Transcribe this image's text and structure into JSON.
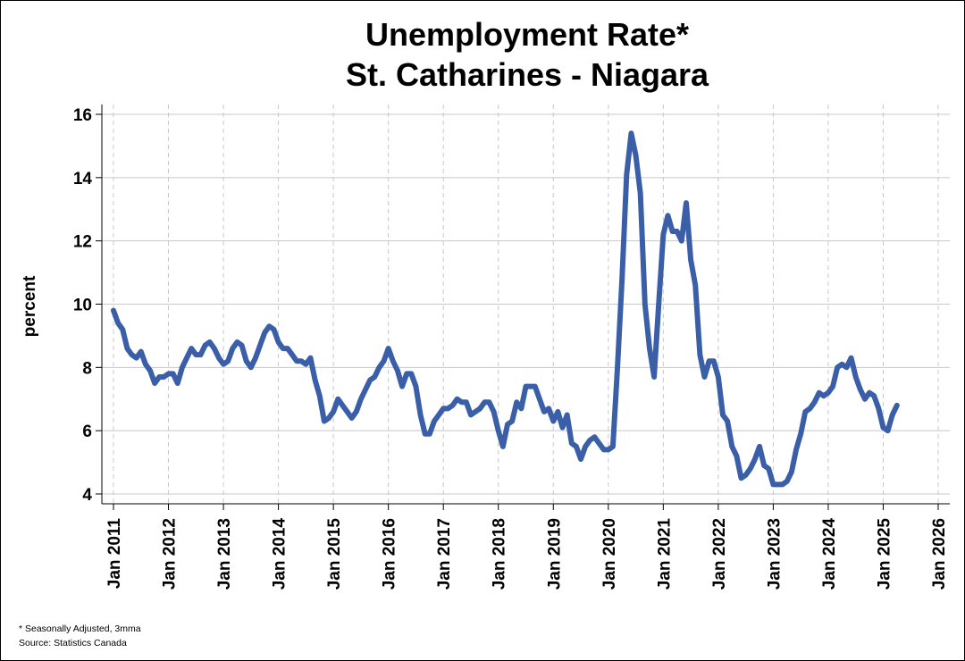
{
  "chart_data": {
    "type": "line",
    "title": "Unemployment Rate*",
    "subtitle": "St. Catharines - Niagara",
    "xlabel": "",
    "ylabel": "percent",
    "ylim": [
      4,
      16.3
    ],
    "yticks": [
      4,
      6,
      8,
      10,
      12,
      14,
      16
    ],
    "xlim": [
      "2011-01",
      "2026-01"
    ],
    "xticks": [
      "Jan 2011",
      "Jan 2012",
      "Jan 2013",
      "Jan 2014",
      "Jan 2015",
      "Jan 2016",
      "Jan 2017",
      "Jan 2018",
      "Jan 2019",
      "Jan 2020",
      "Jan 2021",
      "Jan 2022",
      "Jan 2023",
      "Jan 2024",
      "Jan 2025",
      "Jan 2026"
    ],
    "grid": {
      "x": "dashed",
      "y": "solid"
    },
    "legend": "none",
    "footnote": "* Seasonally Adjusted, 3mma",
    "source": "Source: Statistics Canada",
    "colors": {
      "line": "#3A5FA8",
      "grid_y": "#c8c8c8",
      "grid_x": "#c8c8c8"
    },
    "series": [
      {
        "start": "2011-01",
        "frequency": "monthly",
        "values": [
          9.8,
          9.4,
          9.2,
          8.6,
          8.4,
          8.3,
          8.5,
          8.1,
          7.9,
          7.5,
          7.7,
          7.7,
          7.8,
          7.8,
          7.5,
          8.0,
          8.3,
          8.6,
          8.4,
          8.4,
          8.7,
          8.8,
          8.6,
          8.3,
          8.1,
          8.2,
          8.6,
          8.8,
          8.7,
          8.2,
          8.0,
          8.3,
          8.7,
          9.1,
          9.3,
          9.2,
          8.8,
          8.6,
          8.6,
          8.4,
          8.2,
          8.2,
          8.1,
          8.3,
          7.6,
          7.1,
          6.3,
          6.4,
          6.6,
          7.0,
          6.8,
          6.6,
          6.4,
          6.6,
          7.0,
          7.3,
          7.6,
          7.7,
          8.0,
          8.2,
          8.6,
          8.2,
          7.9,
          7.4,
          7.8,
          7.8,
          7.4,
          6.5,
          5.9,
          5.9,
          6.3,
          6.5,
          6.7,
          6.7,
          6.8,
          7.0,
          6.9,
          6.9,
          6.5,
          6.6,
          6.7,
          6.9,
          6.9,
          6.6,
          6.0,
          5.5,
          6.2,
          6.3,
          6.9,
          6.7,
          7.4,
          7.4,
          7.4,
          7.0,
          6.6,
          6.7,
          6.3,
          6.6,
          6.1,
          6.5,
          5.6,
          5.5,
          5.1,
          5.5,
          5.7,
          5.8,
          5.6,
          5.4,
          5.4,
          5.5,
          8.0,
          10.8,
          14.1,
          15.4,
          14.7,
          13.5,
          10.0,
          8.6,
          7.7,
          10.0,
          12.2,
          12.8,
          12.3,
          12.3,
          12.0,
          13.2,
          11.4,
          10.6,
          8.4,
          7.7,
          8.2,
          8.2,
          7.7,
          6.5,
          6.3,
          5.5,
          5.2,
          4.5,
          4.6,
          4.8,
          5.1,
          5.5,
          4.9,
          4.8,
          4.3,
          4.3,
          4.3,
          4.4,
          4.7,
          5.4,
          5.9,
          6.6,
          6.7,
          6.9,
          7.2,
          7.1,
          7.2,
          7.4,
          8.0,
          8.1,
          8.0,
          8.3,
          7.7,
          7.3,
          7.0,
          7.2,
          7.1,
          6.7,
          6.1,
          6.0,
          6.5,
          6.8
        ]
      }
    ]
  }
}
